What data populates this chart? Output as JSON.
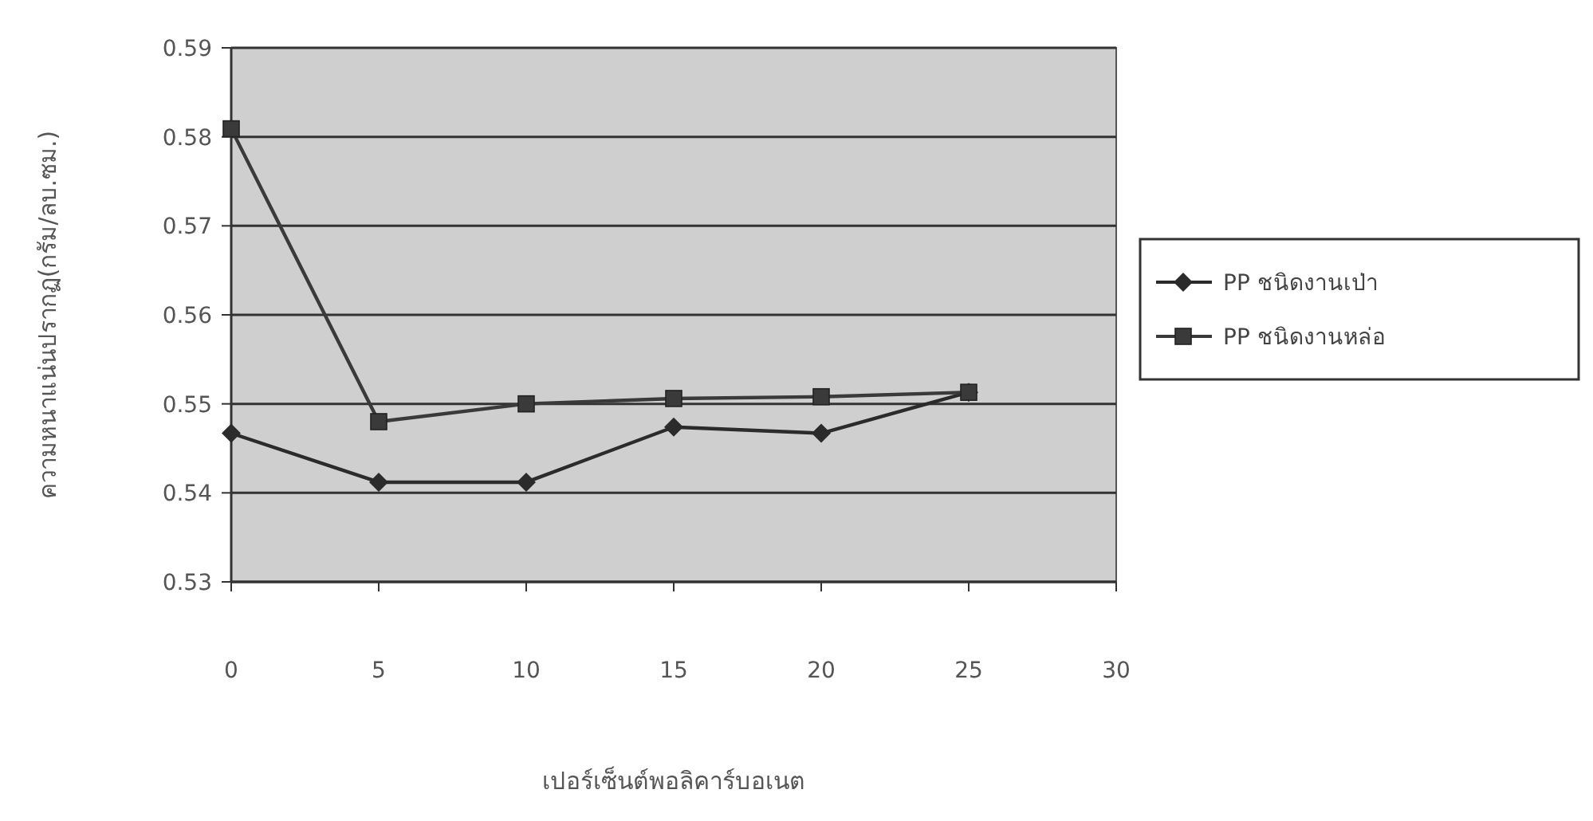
{
  "chart_data": {
    "type": "line",
    "xlabel": "เปอร์เซ็นต์พอลิคาร์บอเนต",
    "ylabel": "ความหนาแน่นปรากฏ(กรัม/ลบ.ซม.)",
    "x": [
      0,
      5,
      10,
      15,
      20,
      25
    ],
    "series": [
      {
        "name": "PP ชนิดงานเป่า",
        "color": "#2b2b2b",
        "marker": "diamond",
        "values": [
          0.5467,
          0.5412,
          0.5412,
          0.5474,
          0.5467,
          0.5513
        ]
      },
      {
        "name": "PP ชนิดงานหล่อ",
        "color": "#3a3a3a",
        "marker": "square",
        "values": [
          0.5809,
          0.548,
          0.55,
          0.5506,
          0.5508,
          0.5513
        ]
      }
    ],
    "xlim": [
      0,
      30
    ],
    "xticks": [
      0,
      5,
      10,
      15,
      20,
      25,
      30
    ],
    "ylim": [
      0.53,
      0.59
    ],
    "yticks": [
      0.53,
      0.54,
      0.55,
      0.56,
      0.57,
      0.58,
      0.59
    ],
    "grid": "y",
    "legend": "right",
    "line_style": "solid"
  }
}
